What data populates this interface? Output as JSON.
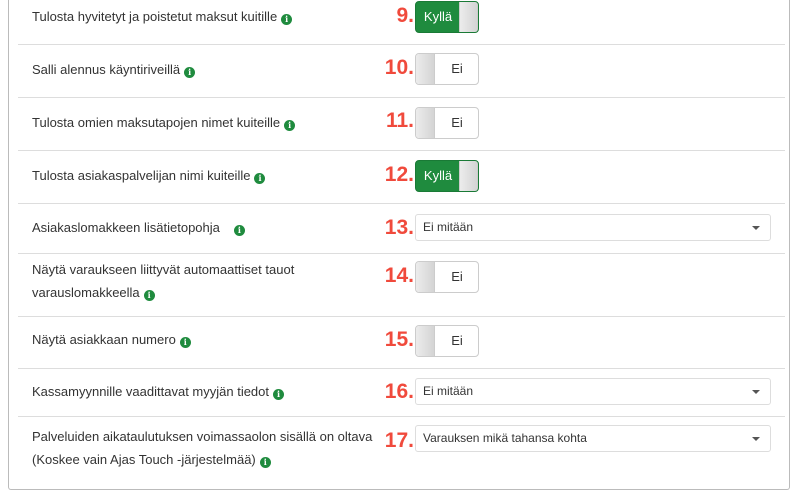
{
  "rows": [
    {
      "number": "9.",
      "label": "Tulosta hyvitetyt ja poistetut maksut kuitille",
      "control": "toggle",
      "value": "Kyllä",
      "on": true
    },
    {
      "number": "10.",
      "label": "Salli alennus käyntiriveillä",
      "control": "toggle",
      "value": "Ei",
      "on": false
    },
    {
      "number": "11.",
      "label": "Tulosta omien maksutapojen nimet kuiteille",
      "control": "toggle",
      "value": "Ei",
      "on": false
    },
    {
      "number": "12.",
      "label": "Tulosta asiakaspalvelijan nimi kuiteille",
      "control": "toggle",
      "value": "Kyllä",
      "on": true
    },
    {
      "number": "13.",
      "label": "Asiakaslomakkeen lisätietopohja",
      "control": "select",
      "value": "Ei mitään"
    },
    {
      "number": "14.",
      "label_line1": "Näytä varaukseen liittyvät automaattiset tauot",
      "label_line2": "varauslomakkeella",
      "control": "toggle",
      "value": "Ei",
      "on": false
    },
    {
      "number": "15.",
      "label": "Näytä asiakkaan numero",
      "control": "toggle",
      "value": "Ei",
      "on": false
    },
    {
      "number": "16.",
      "label": "Kassamyynnille vaadittavat myyjän tiedot",
      "control": "select",
      "value": "Ei mitään"
    },
    {
      "number": "17.",
      "label_line1": "Palveluiden aikataulutuksen voimassaolon sisällä on oltava",
      "label_line2": "(Koskee vain Ajas Touch -järjestelmää)",
      "control": "select",
      "value": "Varauksen mikä tahansa kohta"
    }
  ],
  "info_glyph": "i",
  "colors": {
    "toggle_on": "#1f8b3e",
    "number": "#f04a3c",
    "info": "#1f8b3e"
  }
}
